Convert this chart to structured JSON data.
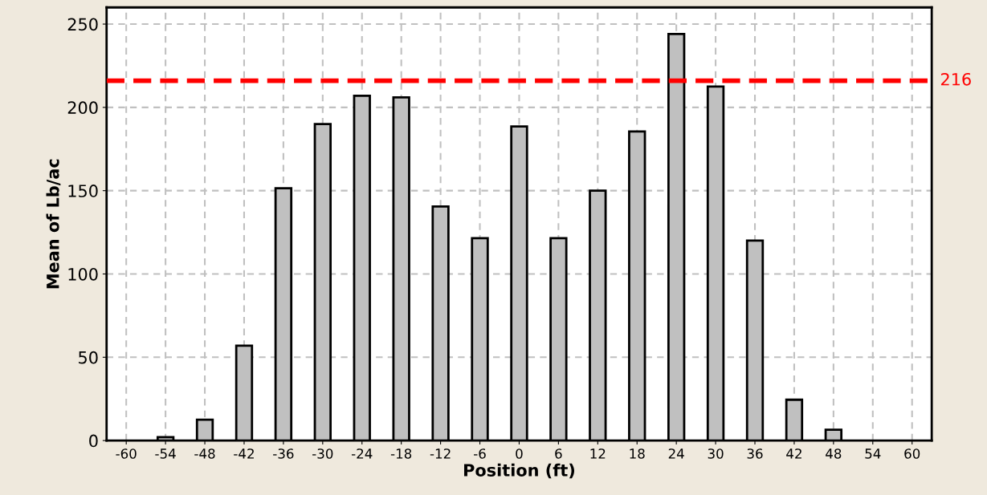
{
  "chart_data": {
    "type": "bar",
    "xlabel": "Position (ft)",
    "ylabel": "Mean of Lb/ac",
    "categories": [
      "-60",
      "-54",
      "-48",
      "-42",
      "-36",
      "-30",
      "-24",
      "-18",
      "-12",
      "-6",
      "0",
      "6",
      "12",
      "18",
      "24",
      "30",
      "36",
      "42",
      "48",
      "54",
      "60"
    ],
    "values": [
      null,
      2,
      12.5,
      57,
      151.5,
      190,
      207,
      206,
      140.5,
      121.5,
      188.5,
      121.5,
      150,
      185.5,
      244,
      212.5,
      120,
      24.5,
      6.5,
      null,
      null
    ],
    "color": "#c0c0c0",
    "ylim": [
      0,
      260
    ],
    "yticks": [
      0,
      50,
      100,
      150,
      200,
      250
    ],
    "grid": true,
    "ref_lines": [
      {
        "axis": "y",
        "value": 216,
        "label": "216",
        "color": "#ff0000",
        "line_style": "dashed"
      }
    ]
  }
}
